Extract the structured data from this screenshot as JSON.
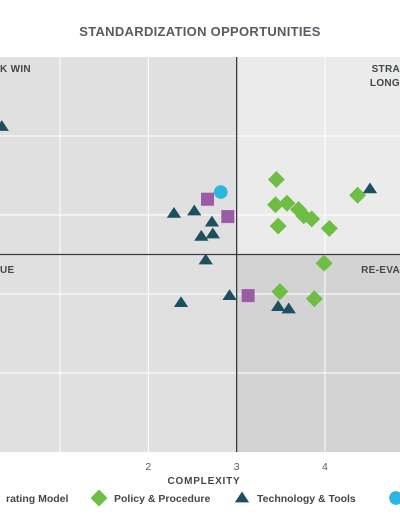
{
  "chart_data": {
    "type": "scatter",
    "title": "STANDARDIZATION OPPORTUNITIES",
    "xlabel": "COMPLEXITY",
    "ylabel": "",
    "xlim": [
      0.32,
      4.85
    ],
    "ylim": [
      0,
      5
    ],
    "x_ticks": [
      2,
      3,
      4
    ],
    "grid": true,
    "quadrants": {
      "x_split": 3,
      "y_split": 2.5,
      "labels": {
        "top_left": "K WIN",
        "top_right_line1": "STRA",
        "top_right_line2": "LONG",
        "bottom_left": "UE",
        "bottom_right": "RE-EVA"
      }
    },
    "colors": {
      "operating_model": "#9c5ba6",
      "policy": "#6ebd45",
      "technology": "#1e4f5f",
      "fourth": "#2bb7dd",
      "quadrant_light": "#ebebeb",
      "quadrant_mid": "#e0e0e0",
      "quadrant_dark": "#d3d3d3",
      "grid": "#ffffff",
      "axis": "#3c3c3c"
    },
    "legend_placement": "bottom",
    "legend": [
      {
        "label": "rating Model",
        "series": "operating_model",
        "shape": "square"
      },
      {
        "label": "Policy & Procedure",
        "series": "policy",
        "shape": "diamond"
      },
      {
        "label": "Technology & Tools",
        "series": "technology",
        "shape": "triangle"
      },
      {
        "label": "",
        "series": "fourth",
        "shape": "circle"
      }
    ],
    "series": [
      {
        "key": "operating_model",
        "shape": "square",
        "points": [
          [
            2.67,
            3.2
          ],
          [
            2.9,
            2.98
          ],
          [
            3.13,
            1.98
          ]
        ]
      },
      {
        "key": "policy",
        "shape": "diamond",
        "points": [
          [
            3.45,
            3.45
          ],
          [
            3.44,
            3.13
          ],
          [
            3.57,
            3.15
          ],
          [
            3.7,
            3.07
          ],
          [
            3.76,
            2.99
          ],
          [
            3.85,
            2.95
          ],
          [
            3.47,
            2.86
          ],
          [
            4.05,
            2.83
          ],
          [
            3.99,
            2.39
          ],
          [
            3.49,
            2.03
          ],
          [
            3.88,
            1.94
          ],
          [
            4.37,
            3.25
          ]
        ]
      },
      {
        "key": "technology",
        "shape": "triangle",
        "points": [
          [
            0.34,
            4.12
          ],
          [
            2.29,
            3.02
          ],
          [
            2.52,
            3.05
          ],
          [
            2.72,
            2.91
          ],
          [
            2.73,
            2.76
          ],
          [
            2.6,
            2.73
          ],
          [
            2.65,
            2.43
          ],
          [
            2.37,
            1.89
          ],
          [
            2.92,
            1.98
          ],
          [
            3.47,
            1.84
          ],
          [
            3.59,
            1.81
          ],
          [
            4.51,
            3.33
          ]
        ]
      },
      {
        "key": "fourth",
        "shape": "circle",
        "points": [
          [
            2.82,
            3.29
          ]
        ]
      }
    ]
  }
}
